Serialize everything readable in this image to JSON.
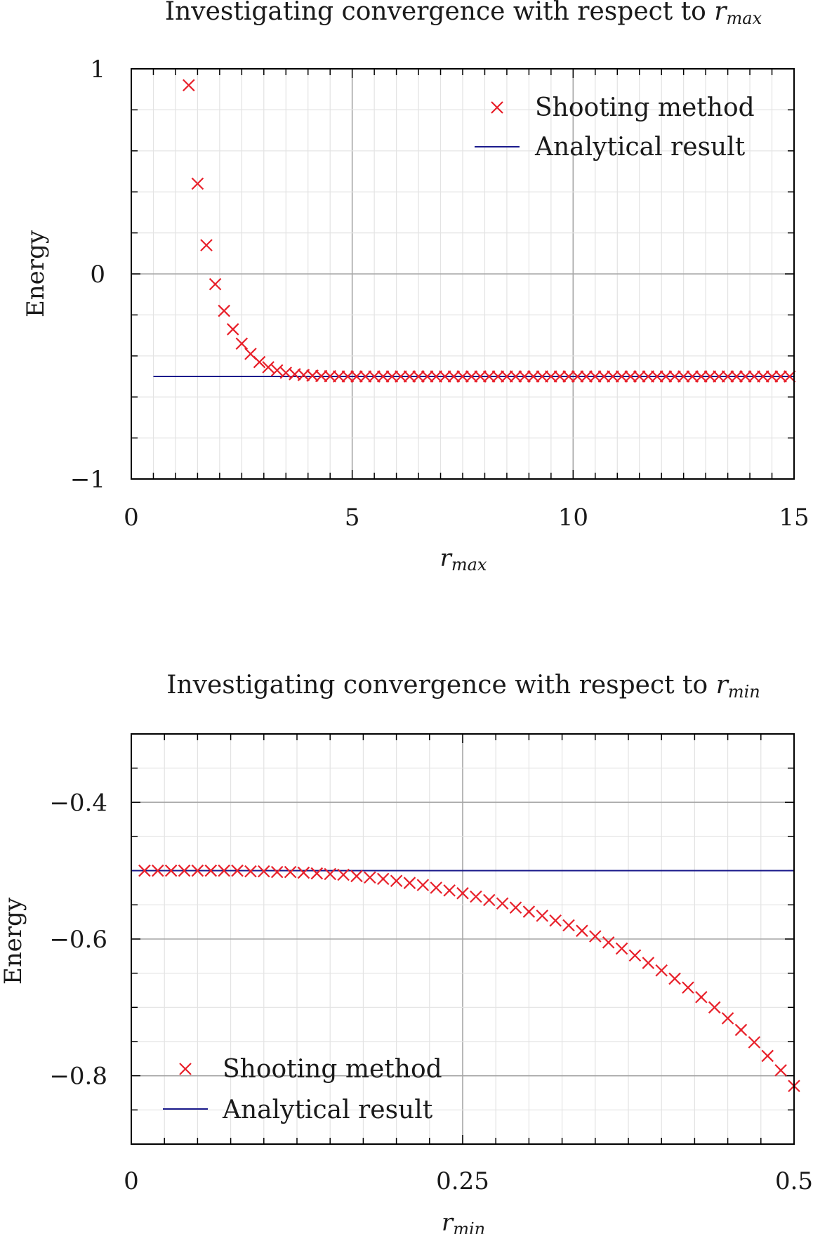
{
  "chart_data": [
    {
      "type": "scatter",
      "title_prefix": "Investigating convergence with respect to ",
      "title_var": "r",
      "title_sub": "max",
      "xlabel_var": "r",
      "xlabel_sub": "max",
      "ylabel": "Energy",
      "xlim": [
        0,
        15
      ],
      "ylim": [
        -1,
        1
      ],
      "xticks": [
        0,
        5,
        10,
        15
      ],
      "xtick_labels": [
        "0",
        "5",
        "10",
        "15"
      ],
      "yticks": [
        -1,
        0,
        1
      ],
      "ytick_labels": [
        "−1",
        "0",
        "1"
      ],
      "grid": true,
      "legend_position": "top-right",
      "colors": {
        "marker": "#e8202a",
        "line": "#1a1a8c",
        "grid_major": "#a6a6a6",
        "grid_minor": "#e3e3e3"
      },
      "series": [
        {
          "name": "Shooting method",
          "marker": "x",
          "x": [
            1.3,
            1.5,
            1.7,
            1.9,
            2.1,
            2.3,
            2.5,
            2.7,
            2.9,
            3.1,
            3.3,
            3.5,
            3.7,
            3.9,
            4.1,
            4.3,
            4.5,
            4.7,
            4.9,
            5.1,
            5.3,
            5.5,
            5.7,
            5.9,
            6.1,
            6.3,
            6.5,
            6.7,
            6.9,
            7.1,
            7.3,
            7.5,
            7.7,
            7.9,
            8.1,
            8.3,
            8.5,
            8.7,
            8.9,
            9.1,
            9.3,
            9.5,
            9.7,
            9.9,
            10.1,
            10.3,
            10.5,
            10.7,
            10.9,
            11.1,
            11.3,
            11.5,
            11.7,
            11.9,
            12.1,
            12.3,
            12.5,
            12.7,
            12.9,
            13.1,
            13.3,
            13.5,
            13.7,
            13.9,
            14.1,
            14.3,
            14.5,
            14.7,
            14.9
          ],
          "y": [
            0.92,
            0.44,
            0.14,
            -0.05,
            -0.18,
            -0.27,
            -0.34,
            -0.39,
            -0.43,
            -0.455,
            -0.47,
            -0.482,
            -0.489,
            -0.493,
            -0.496,
            -0.498,
            -0.499,
            -0.5,
            -0.5,
            -0.5,
            -0.5,
            -0.5,
            -0.5,
            -0.5,
            -0.5,
            -0.5,
            -0.5,
            -0.5,
            -0.5,
            -0.5,
            -0.5,
            -0.5,
            -0.5,
            -0.5,
            -0.5,
            -0.5,
            -0.5,
            -0.5,
            -0.5,
            -0.5,
            -0.5,
            -0.5,
            -0.5,
            -0.5,
            -0.5,
            -0.5,
            -0.5,
            -0.5,
            -0.5,
            -0.5,
            -0.5,
            -0.5,
            -0.5,
            -0.5,
            -0.5,
            -0.5,
            -0.5,
            -0.5,
            -0.5,
            -0.5,
            -0.5,
            -0.5,
            -0.5,
            -0.5,
            -0.5,
            -0.5,
            -0.5,
            -0.5,
            -0.5
          ]
        },
        {
          "name": "Analytical result",
          "marker": "line",
          "x": [
            0.5,
            15
          ],
          "y": [
            -0.5,
            -0.5
          ]
        }
      ]
    },
    {
      "type": "scatter",
      "title_prefix": "Investigating convergence with respect to ",
      "title_var": "r",
      "title_sub": "min",
      "xlabel_var": "r",
      "xlabel_sub": "min",
      "ylabel": "Energy",
      "xlim": [
        0,
        0.5
      ],
      "ylim": [
        -0.9,
        -0.3
      ],
      "xticks": [
        0,
        0.25,
        0.5
      ],
      "xtick_labels": [
        "0",
        "0.25",
        "0.5"
      ],
      "yticks": [
        -0.4,
        -0.6,
        -0.8
      ],
      "ytick_labels": [
        "−0.4",
        "−0.6",
        "−0.8"
      ],
      "grid": true,
      "legend_position": "bottom-left",
      "colors": {
        "marker": "#e8202a",
        "line": "#1a1a8c",
        "grid_major": "#a6a6a6",
        "grid_minor": "#e3e3e3"
      },
      "series": [
        {
          "name": "Shooting method",
          "marker": "x",
          "x": [
            0.01,
            0.02,
            0.03,
            0.04,
            0.05,
            0.06,
            0.07,
            0.08,
            0.09,
            0.1,
            0.11,
            0.12,
            0.13,
            0.14,
            0.15,
            0.16,
            0.17,
            0.18,
            0.19,
            0.2,
            0.21,
            0.22,
            0.23,
            0.24,
            0.25,
            0.26,
            0.27,
            0.28,
            0.29,
            0.3,
            0.31,
            0.32,
            0.33,
            0.34,
            0.35,
            0.36,
            0.37,
            0.38,
            0.39,
            0.4,
            0.41,
            0.42,
            0.43,
            0.44,
            0.45,
            0.46,
            0.47,
            0.48,
            0.49,
            0.5
          ],
          "y": [
            -0.5,
            -0.5,
            -0.5,
            -0.5,
            -0.5,
            -0.5,
            -0.5,
            -0.5,
            -0.501,
            -0.501,
            -0.502,
            -0.502,
            -0.503,
            -0.504,
            -0.505,
            -0.506,
            -0.508,
            -0.51,
            -0.512,
            -0.515,
            -0.518,
            -0.521,
            -0.525,
            -0.529,
            -0.533,
            -0.538,
            -0.543,
            -0.548,
            -0.554,
            -0.56,
            -0.566,
            -0.573,
            -0.58,
            -0.588,
            -0.596,
            -0.605,
            -0.614,
            -0.624,
            -0.635,
            -0.646,
            -0.658,
            -0.671,
            -0.685,
            -0.7,
            -0.716,
            -0.733,
            -0.751,
            -0.771,
            -0.792,
            -0.815
          ]
        },
        {
          "name": "Analytical result",
          "marker": "line",
          "x": [
            0,
            0.5
          ],
          "y": [
            -0.5,
            -0.5
          ]
        }
      ]
    }
  ]
}
